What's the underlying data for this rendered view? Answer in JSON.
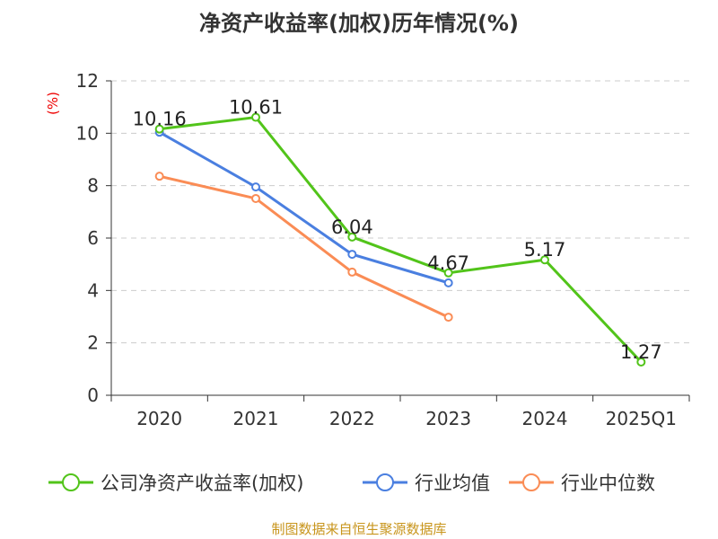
{
  "title": "净资产收益率(加权)历年情况(%)",
  "source": "制图数据来自恒生聚源数据库",
  "chart_data": {
    "type": "line",
    "ylabel": "(%)",
    "ylim": [
      0,
      12
    ],
    "yticks": [
      0,
      2,
      4,
      6,
      8,
      10,
      12
    ],
    "grid": true,
    "legend": "bottom",
    "categories": [
      "2020",
      "2021",
      "2022",
      "2023",
      "2024",
      "2025Q1"
    ],
    "series": [
      {
        "name": "公司净资产收益率(加权)",
        "color": "#52c41a",
        "values": [
          10.16,
          10.61,
          6.04,
          4.67,
          5.17,
          1.27
        ],
        "labels": true
      },
      {
        "name": "行业均值",
        "color": "#4a7fe0",
        "values": [
          10.04,
          7.95,
          5.38,
          4.29,
          null,
          null
        ]
      },
      {
        "name": "行业中位数",
        "color": "#fa8c55",
        "values": [
          8.36,
          7.51,
          4.7,
          2.98,
          null,
          null
        ]
      }
    ]
  }
}
